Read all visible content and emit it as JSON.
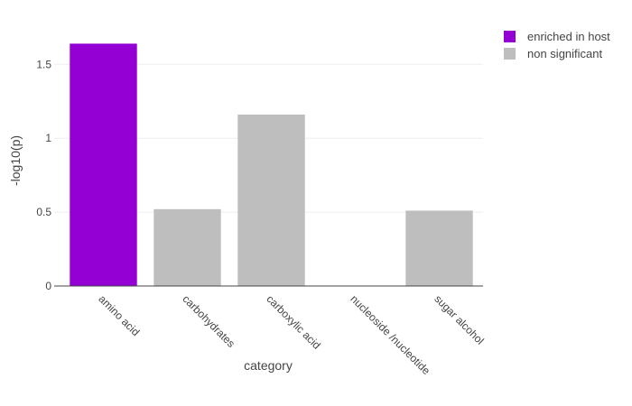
{
  "chart_data": {
    "type": "bar",
    "categories": [
      "amino acid",
      "carbohydrates",
      "carboxylic acid",
      "nucleoside /nucleotide",
      "sugar alcohol"
    ],
    "values": [
      1.64,
      0.52,
      1.16,
      0,
      0.51
    ],
    "groups": [
      "enriched in host",
      "non significant",
      "non significant",
      "non significant",
      "non significant"
    ],
    "xlabel": "category",
    "ylabel": "-log10(p)",
    "ylim": [
      0,
      1.74
    ],
    "yticks": [
      0,
      0.5,
      1,
      1.5
    ],
    "grid": "horizontal",
    "legend": {
      "placement": "top-right",
      "items": [
        {
          "label": "enriched in host",
          "color": "#9400d3"
        },
        {
          "label": "non significant",
          "color": "#bebebe"
        }
      ]
    }
  }
}
